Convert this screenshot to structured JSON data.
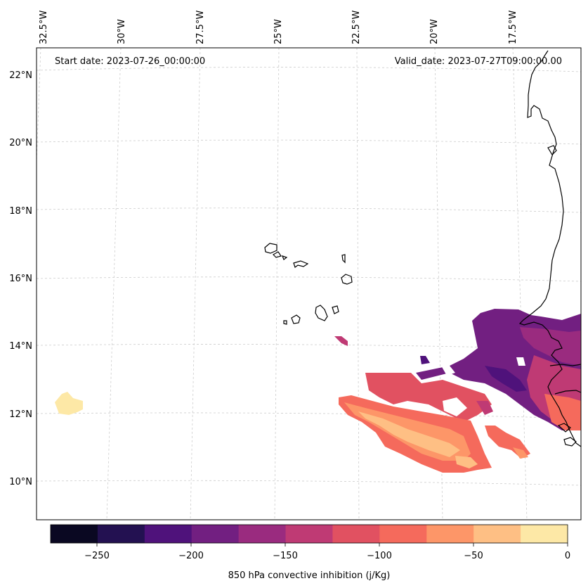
{
  "header": {
    "start_date": "Start date: 2023-07-26_00:00:00",
    "valid_date": "Valid_date: 2023-07-27T09:00:00.00"
  },
  "axes": {
    "lon_labels": [
      "32.5°W",
      "30°W",
      "27.5°W",
      "25°W",
      "22.5°W",
      "20°W",
      "17.5°W"
    ],
    "lat_labels": [
      "22°N",
      "20°N",
      "18°N",
      "16°N",
      "14°N",
      "12°N",
      "10°N"
    ]
  },
  "colorbar": {
    "title": "850 hPa convective inhibition (j/Kg)",
    "ticks": [
      "−250",
      "−200",
      "−150",
      "−100",
      "−50",
      "0"
    ],
    "colors": [
      "#0a0822",
      "#231151",
      "#4f127b",
      "#721f81",
      "#9a2b7f",
      "#bf3a74",
      "#e15161",
      "#f56a5c",
      "#fd9668",
      "#febf84",
      "#fde8a6"
    ]
  },
  "chart_data": {
    "type": "map",
    "title": "850 hPa convective inhibition (j/Kg)",
    "variable": "850 hPa convective inhibition",
    "units": "j/Kg",
    "levels": [
      -275,
      -250,
      -225,
      -200,
      -175,
      -150,
      -125,
      -100,
      -75,
      -50,
      -25,
      0
    ],
    "lon_range": [
      -32.5,
      -15.5
    ],
    "lat_range": [
      9,
      22.5
    ],
    "regions": [
      {
        "name": "isolated-cell-west",
        "value_range": [
          -25,
          0
        ]
      },
      {
        "name": "northeast-trough",
        "value_range": [
          -200,
          -150
        ]
      },
      {
        "name": "southeast-band",
        "value_range": [
          -150,
          -25
        ]
      },
      {
        "name": "central-cells",
        "value_range": [
          -150,
          -100
        ]
      }
    ]
  }
}
